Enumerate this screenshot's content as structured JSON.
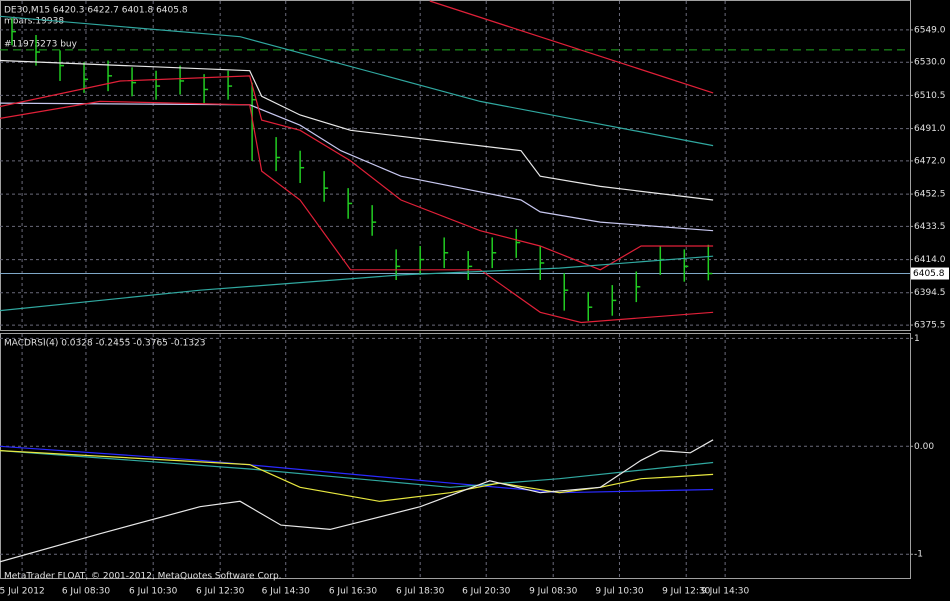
{
  "chart_data": [
    {
      "type": "ohlc",
      "title": "DE30,M15  6420.3 6422.7 6401.8 6405.8",
      "annotation": "mbars:19938",
      "order_label": "#11975273 buy",
      "order_level": 6537.3,
      "order_color": "#22aa22",
      "last_price": 6405.8,
      "last_price_color": "#7fa8c8",
      "xlim": [
        0.5,
        38.4
      ],
      "ylim": [
        6372.6,
        6566.0
      ],
      "grid": true,
      "yticks": [
        {
          "value": 6549,
          "label": "6549.0"
        },
        {
          "value": 6530,
          "label": "6530.0"
        },
        6510.5,
        {
          "value": 6491,
          "label": "6491.0"
        },
        {
          "value": 6472,
          "label": "6472.0"
        },
        6452.5,
        6433.5,
        {
          "value": 6414,
          "label": "6414.0"
        },
        6394.5,
        6375.5
      ],
      "bar_color": "#22cc22",
      "bars": {
        "x": [
          1,
          2,
          3,
          4,
          5,
          6,
          7,
          8,
          9,
          10,
          11,
          12,
          13,
          14,
          15,
          16,
          17,
          18,
          19,
          20,
          21,
          22,
          23,
          24,
          25,
          26,
          27,
          28,
          29,
          30
        ],
        "high": [
          6556,
          6546,
          6537,
          6530,
          6531,
          6527,
          6525,
          6528,
          6523,
          6525,
          6518,
          6486,
          6478,
          6466,
          6456,
          6446,
          6420,
          6422,
          6427,
          6419,
          6427,
          6432,
          6422,
          6406,
          6395,
          6399,
          6407,
          6422,
          6420,
          6422.7
        ],
        "low": [
          6540,
          6528,
          6519,
          6512,
          6513,
          6510,
          6508,
          6511,
          6506,
          6508,
          6472,
          6466,
          6459,
          6448,
          6438,
          6428,
          6402,
          6405,
          6409,
          6402,
          6409,
          6415,
          6402,
          6384,
          6378,
          6381,
          6389,
          6405,
          6401,
          6401.8
        ],
        "close": [
          6548,
          6536,
          6528,
          6520,
          6522,
          6518,
          6516,
          6519,
          6514,
          6516,
          6508,
          6474,
          6468,
          6456,
          6447,
          6436,
          6410,
          6414,
          6418,
          6410,
          6418,
          6424,
          6412,
          6396,
          6386,
          6390,
          6398,
          6414,
          6410,
          6405.8
        ]
      },
      "series": [
        {
          "color": "#e02038",
          "x": [
            18.4,
            30.2
          ],
          "values": [
            6566,
            6512
          ]
        },
        {
          "color": "#30a8a0",
          "x": [
            0.5,
            10.5,
            20.5,
            30.2
          ],
          "values": [
            6557,
            6545,
            6507,
            6481
          ]
        },
        {
          "color": "#e8e8e8",
          "x": [
            0.5,
            10.9,
            11.4,
            13,
            15.1,
            22.2,
            23,
            25.5,
            30.2
          ],
          "values": [
            6531,
            6525,
            6510,
            6499,
            6490,
            6478,
            6463,
            6457,
            6449
          ]
        },
        {
          "color": "#c8c8f0",
          "x": [
            0.5,
            10.9,
            13,
            14.7,
            17.2,
            22.2,
            23,
            25.5,
            30.2
          ],
          "values": [
            6506,
            6505,
            6493,
            6478,
            6463,
            6449,
            6442,
            6436,
            6431
          ]
        },
        {
          "color": "#e02038",
          "x": [
            0.5,
            4.67,
            10.9,
            11.4,
            13,
            15.1,
            20.5,
            23,
            24.7,
            30.2
          ],
          "values": [
            6497,
            6507,
            6505,
            6466,
            6449,
            6408,
            6408,
            6383,
            6377,
            6383
          ]
        },
        {
          "color": "#e02038",
          "x": [
            0.5,
            5.5,
            10.9,
            11.4,
            13,
            15.1,
            17.2,
            20.5,
            23,
            25.5,
            27.2,
            30.2
          ],
          "values": [
            6504,
            6519,
            6522,
            6496,
            6490,
            6472,
            6449,
            6431,
            6422,
            6408,
            6422,
            6422
          ]
        },
        {
          "color": "#30a8a0",
          "x": [
            0.5,
            8.83,
            17.2,
            23.8,
            30.2
          ],
          "values": [
            6384,
            6396,
            6405,
            6409,
            6416
          ]
        }
      ]
    },
    {
      "type": "line",
      "title": "MACDRSI(4) 0.0328 -0.2455 -0.3765 -0.1323",
      "footnote": "MetaTrader FLOAT, © 2001-2012, MetaQuotes Software Corp.",
      "xlim": [
        0.5,
        38.4
      ],
      "ylim": [
        -1.22,
        1.04
      ],
      "yticks": [
        1,
        {
          "value": 0,
          "label": "0.00"
        },
        -1
      ],
      "xticks": [
        {
          "value": 1.42,
          "label": "5 Jul 2012"
        },
        {
          "value": 4.08,
          "label": "6 Jul 08:30"
        },
        {
          "value": 6.88,
          "label": "6 Jul 10:30"
        },
        {
          "value": 9.67,
          "label": "6 Jul 12:30"
        },
        {
          "value": 12.4,
          "label": "6 Jul 14:30"
        },
        {
          "value": 15.2,
          "label": "6 Jul 16:30"
        },
        {
          "value": 18,
          "label": "6 Jul 18:30"
        },
        {
          "value": 20.75,
          "label": "6 Jul 20:30"
        },
        {
          "value": 23.54,
          "label": "9 Jul 08:30"
        },
        {
          "value": 26.3,
          "label": "9 Jul 10:30"
        },
        {
          "value": 29.08,
          "label": "9 Jul 12:30"
        },
        {
          "value": 30.7,
          "label": "9 Jul 14:30"
        }
      ],
      "series": [
        {
          "color": "#2a2aff",
          "x": [
            0.5,
            8.83,
            17.2,
            23.8,
            30.2
          ],
          "values": [
            0,
            -0.13,
            -0.3,
            -0.43,
            -0.4
          ]
        },
        {
          "color": "#30a8a0",
          "x": [
            0.5,
            10.9,
            19.25,
            23.8,
            30.2
          ],
          "values": [
            -0.04,
            -0.21,
            -0.38,
            -0.3,
            -0.15
          ]
        },
        {
          "color": "#e8e840",
          "x": [
            0.5,
            10.9,
            13,
            16.3,
            19.25,
            21.3,
            23.8,
            25.5,
            27.2,
            28.8,
            30.2
          ],
          "values": [
            -0.04,
            -0.17,
            -0.38,
            -0.51,
            -0.43,
            -0.34,
            -0.43,
            -0.38,
            -0.3,
            -0.28,
            -0.26
          ]
        },
        {
          "color": "#e8e8e8",
          "x": [
            0.5,
            4.67,
            8.83,
            10.5,
            12.2,
            14.25,
            18,
            20.9,
            23,
            25.5,
            27.2,
            28,
            29.25,
            30.2
          ],
          "values": [
            -1.07,
            -0.81,
            -0.56,
            -0.51,
            -0.73,
            -0.77,
            -0.56,
            -0.32,
            -0.43,
            -0.38,
            -0.13,
            -0.04,
            -0.06,
            0.06
          ]
        }
      ]
    }
  ]
}
